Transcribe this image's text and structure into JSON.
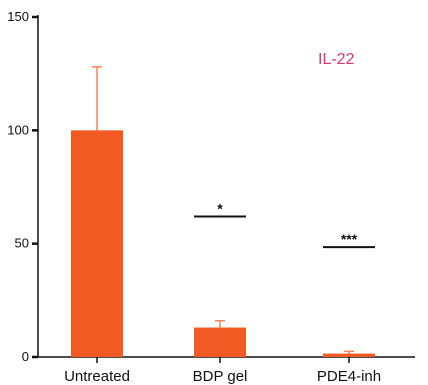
{
  "chart_data": {
    "type": "bar",
    "title": "",
    "xlabel": "",
    "ylabel": "",
    "ylim": [
      0,
      150
    ],
    "yticks": [
      0,
      50,
      100,
      150
    ],
    "ytick_labels": [
      "0",
      "50",
      "100",
      "150"
    ],
    "categories": [
      "Untreated",
      "BDP gel",
      "PDE4-inh"
    ],
    "series": [
      {
        "name": "IL-22",
        "values": [
          100,
          13,
          1.5
        ],
        "errors": [
          28,
          3,
          1
        ]
      }
    ],
    "significance": [
      "",
      "*",
      "***"
    ],
    "legend_position": "top-right",
    "grid": false,
    "colors": {
      "bar": "#f15a22",
      "error_bar": "#f4865a",
      "legend_text": "#e0336c",
      "axis": "#111111"
    }
  }
}
